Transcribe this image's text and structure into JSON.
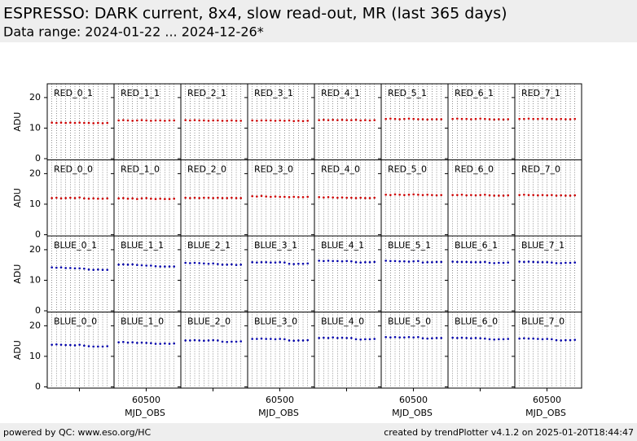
{
  "chart_data": {
    "type": "scatter",
    "title": "ESPRESSO: DARK current, 8x4, slow read-out, MR (last 365 days)",
    "subtitle": "Data range: 2024-01-22 ... 2024-12-26*",
    "ylabel": "ADU",
    "xlabel": "MJD_OBS",
    "x": [
      60333,
      60361,
      60389,
      60417,
      60445,
      60473,
      60501,
      60529,
      60557,
      60585,
      60613,
      60641,
      60669
    ],
    "xlim": [
      60305,
      60710
    ],
    "xticks": [
      60500
    ],
    "ylim": [
      -0.4,
      24.5
    ],
    "yticks": [
      0,
      10,
      20
    ],
    "grid": true,
    "panels": [
      {
        "name": "RED_0_1",
        "color": "#cc0000",
        "values": [
          11.8,
          11.7,
          11.8,
          11.7,
          11.8,
          11.7,
          11.8,
          11.7,
          11.7,
          11.6,
          11.7,
          11.6,
          11.7
        ]
      },
      {
        "name": "RED_1_1",
        "color": "#cc0000",
        "values": [
          12.5,
          12.6,
          12.5,
          12.4,
          12.5,
          12.6,
          12.5,
          12.4,
          12.5,
          12.5,
          12.4,
          12.5,
          12.5
        ]
      },
      {
        "name": "RED_2_1",
        "color": "#cc0000",
        "values": [
          12.6,
          12.5,
          12.6,
          12.5,
          12.5,
          12.4,
          12.5,
          12.5,
          12.4,
          12.4,
          12.5,
          12.4,
          12.4
        ]
      },
      {
        "name": "RED_3_1",
        "color": "#cc0000",
        "values": [
          12.5,
          12.4,
          12.5,
          12.5,
          12.5,
          12.4,
          12.5,
          12.4,
          12.5,
          12.3,
          12.4,
          12.3,
          12.4
        ]
      },
      {
        "name": "RED_4_1",
        "color": "#cc0000",
        "values": [
          12.6,
          12.7,
          12.6,
          12.7,
          12.6,
          12.7,
          12.6,
          12.6,
          12.7,
          12.5,
          12.6,
          12.5,
          12.6
        ]
      },
      {
        "name": "RED_5_1",
        "color": "#cc0000",
        "values": [
          13.0,
          13.1,
          13.0,
          12.9,
          13.0,
          13.1,
          13.0,
          12.9,
          12.9,
          12.8,
          12.9,
          12.9,
          12.9
        ]
      },
      {
        "name": "RED_6_1",
        "color": "#cc0000",
        "values": [
          13.0,
          13.1,
          13.0,
          13.0,
          12.9,
          13.0,
          13.1,
          13.0,
          12.9,
          12.8,
          12.9,
          12.8,
          12.9
        ]
      },
      {
        "name": "RED_7_1",
        "color": "#cc0000",
        "values": [
          13.0,
          13.0,
          13.1,
          13.0,
          13.0,
          13.1,
          13.0,
          13.0,
          12.9,
          13.0,
          12.9,
          12.9,
          13.0
        ]
      },
      {
        "name": "RED_0_0",
        "color": "#cc0000",
        "values": [
          12.0,
          12.1,
          11.9,
          12.0,
          12.1,
          12.0,
          12.2,
          11.9,
          11.8,
          11.9,
          11.8,
          11.8,
          11.9
        ]
      },
      {
        "name": "RED_1_0",
        "color": "#cc0000",
        "values": [
          11.9,
          12.0,
          11.8,
          11.9,
          11.7,
          11.9,
          12.0,
          11.8,
          11.7,
          11.8,
          11.7,
          11.7,
          11.8
        ]
      },
      {
        "name": "RED_2_0",
        "color": "#cc0000",
        "values": [
          12.1,
          12.0,
          12.1,
          12.0,
          12.1,
          12.1,
          12.0,
          12.1,
          12.0,
          12.0,
          12.1,
          12.0,
          12.0
        ]
      },
      {
        "name": "RED_3_0",
        "color": "#cc0000",
        "values": [
          12.6,
          12.5,
          12.7,
          12.5,
          12.4,
          12.5,
          12.4,
          12.4,
          12.3,
          12.4,
          12.3,
          12.3,
          12.4
        ]
      },
      {
        "name": "RED_4_0",
        "color": "#cc0000",
        "values": [
          12.3,
          12.2,
          12.3,
          12.2,
          12.1,
          12.2,
          12.1,
          12.1,
          12.0,
          12.1,
          12.0,
          12.0,
          12.1
        ]
      },
      {
        "name": "RED_5_0",
        "color": "#cc0000",
        "values": [
          13.1,
          13.0,
          13.2,
          13.1,
          13.0,
          13.1,
          13.2,
          13.1,
          13.0,
          13.1,
          13.0,
          12.9,
          13.0
        ]
      },
      {
        "name": "RED_6_0",
        "color": "#cc0000",
        "values": [
          13.0,
          13.0,
          13.1,
          12.9,
          13.0,
          12.9,
          13.0,
          13.1,
          12.9,
          12.8,
          12.8,
          12.8,
          12.9
        ]
      },
      {
        "name": "RED_7_0",
        "color": "#cc0000",
        "values": [
          13.0,
          13.1,
          13.0,
          13.0,
          12.9,
          13.0,
          12.9,
          13.0,
          12.8,
          12.9,
          12.8,
          12.8,
          12.9
        ]
      },
      {
        "name": "BLUE_0_1",
        "color": "#0000aa",
        "values": [
          14.2,
          14.1,
          14.2,
          14.0,
          14.0,
          13.9,
          13.9,
          13.8,
          13.5,
          13.4,
          13.5,
          13.4,
          13.4
        ]
      },
      {
        "name": "BLUE_1_1",
        "color": "#0000aa",
        "values": [
          15.1,
          15.2,
          15.1,
          15.2,
          15.0,
          14.9,
          14.8,
          14.8,
          14.6,
          14.5,
          14.5,
          14.5,
          14.5
        ]
      },
      {
        "name": "BLUE_2_1",
        "color": "#0000aa",
        "values": [
          15.7,
          15.6,
          15.7,
          15.6,
          15.5,
          15.4,
          15.5,
          15.3,
          15.1,
          15.1,
          15.2,
          15.0,
          15.1
        ]
      },
      {
        "name": "BLUE_3_1",
        "color": "#0000aa",
        "values": [
          15.9,
          15.8,
          15.9,
          15.9,
          15.8,
          15.8,
          15.9,
          15.8,
          15.4,
          15.3,
          15.4,
          15.4,
          15.5
        ]
      },
      {
        "name": "BLUE_4_1",
        "color": "#0000aa",
        "values": [
          16.4,
          16.3,
          16.4,
          16.3,
          16.3,
          16.2,
          16.3,
          16.2,
          15.9,
          15.8,
          15.9,
          15.9,
          16.0
        ]
      },
      {
        "name": "BLUE_5_1",
        "color": "#0000aa",
        "values": [
          16.4,
          16.3,
          16.3,
          16.2,
          16.2,
          16.1,
          16.2,
          16.3,
          15.8,
          15.9,
          15.9,
          16.0,
          16.0
        ]
      },
      {
        "name": "BLUE_6_1",
        "color": "#0000aa",
        "values": [
          16.1,
          16.0,
          16.0,
          16.0,
          15.9,
          15.9,
          15.9,
          16.0,
          15.7,
          15.6,
          15.7,
          15.7,
          15.8
        ]
      },
      {
        "name": "BLUE_7_1",
        "color": "#0000aa",
        "values": [
          16.1,
          16.0,
          16.1,
          16.0,
          15.9,
          15.9,
          15.9,
          15.8,
          15.6,
          15.6,
          15.7,
          15.7,
          15.8
        ]
      },
      {
        "name": "BLUE_0_0",
        "color": "#0000aa",
        "values": [
          13.8,
          13.9,
          13.8,
          13.7,
          13.7,
          13.6,
          13.8,
          13.5,
          13.3,
          13.2,
          13.2,
          13.2,
          13.3
        ]
      },
      {
        "name": "BLUE_1_0",
        "color": "#0000aa",
        "values": [
          14.6,
          14.7,
          14.5,
          14.6,
          14.4,
          14.5,
          14.4,
          14.3,
          14.1,
          14.1,
          14.2,
          14.1,
          14.2
        ]
      },
      {
        "name": "BLUE_2_0",
        "color": "#0000aa",
        "values": [
          15.2,
          15.2,
          15.3,
          15.2,
          15.1,
          15.2,
          15.3,
          15.2,
          14.8,
          14.7,
          14.8,
          14.8,
          14.9
        ]
      },
      {
        "name": "BLUE_3_0",
        "color": "#0000aa",
        "values": [
          15.7,
          15.7,
          15.8,
          15.7,
          15.7,
          15.6,
          15.7,
          15.6,
          15.2,
          15.1,
          15.2,
          15.2,
          15.3
        ]
      },
      {
        "name": "BLUE_4_0",
        "color": "#0000aa",
        "values": [
          16.0,
          16.1,
          16.0,
          16.2,
          16.0,
          16.1,
          16.0,
          16.0,
          15.6,
          15.5,
          15.6,
          15.6,
          15.7
        ]
      },
      {
        "name": "BLUE_5_0",
        "color": "#0000aa",
        "values": [
          16.3,
          16.2,
          16.3,
          16.2,
          16.2,
          16.3,
          16.2,
          16.3,
          15.9,
          15.8,
          15.9,
          16.0,
          16.0
        ]
      },
      {
        "name": "BLUE_6_0",
        "color": "#0000aa",
        "values": [
          16.1,
          16.0,
          16.1,
          16.0,
          15.9,
          16.0,
          15.9,
          15.8,
          15.6,
          15.5,
          15.6,
          15.6,
          15.7
        ]
      },
      {
        "name": "BLUE_7_0",
        "color": "#0000aa",
        "values": [
          15.8,
          15.9,
          15.8,
          15.8,
          15.7,
          15.6,
          15.7,
          15.6,
          15.3,
          15.2,
          15.3,
          15.3,
          15.4
        ]
      }
    ]
  },
  "footer": {
    "left": "powered by QC: www.eso.org/HC",
    "right": "created by trendPlotter v4.1.2 on 2025-01-20T18:44:47"
  }
}
